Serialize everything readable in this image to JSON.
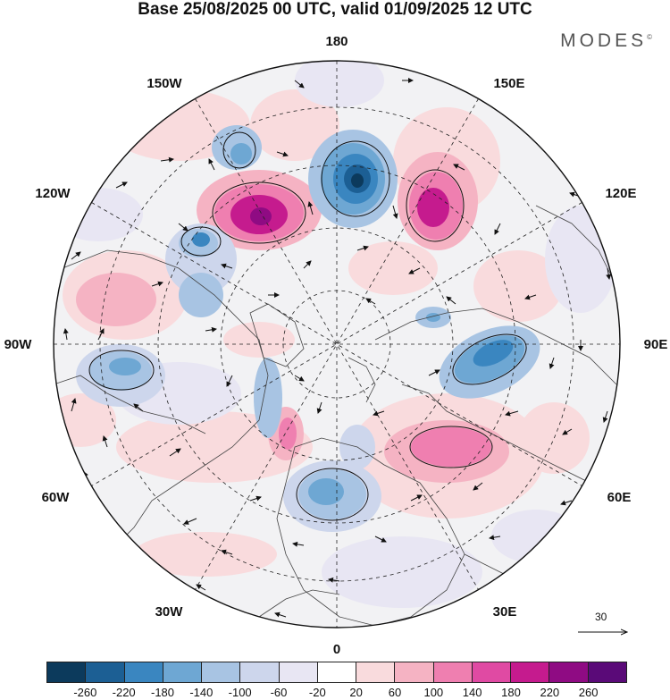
{
  "title": "Base 25/08/2025 00 UTC, valid 01/09/2025 12 UTC",
  "brand": "MODES",
  "brand_mark": "©",
  "longitude_labels": {
    "lon_180": "180",
    "lon_150e": "150E",
    "lon_120e": "120E",
    "lon_90e": "90E",
    "lon_60e": "60E",
    "lon_30e": "30E",
    "lon_0": "0",
    "lon_30w": "30W",
    "lon_60w": "60W",
    "lon_90w": "90W",
    "lon_120w": "120W",
    "lon_150w": "150W"
  },
  "vector_scale_label": "30",
  "colorbar": {
    "colors": [
      "#0c3a5c",
      "#1c5f94",
      "#3a86c0",
      "#6ea7d3",
      "#a8c4e3",
      "#cdd6ec",
      "#e8e6f3",
      "#ffffff",
      "#f9dbdd",
      "#f5b3c3",
      "#ef7fb0",
      "#e04aa3",
      "#c51b8e",
      "#8f0b83",
      "#5a0a78"
    ],
    "ticks": [
      "-260",
      "-220",
      "-180",
      "-140",
      "-100",
      "-60",
      "-20",
      "20",
      "60",
      "100",
      "140",
      "180",
      "220",
      "260"
    ]
  },
  "colors": {
    "ocean": "#f4f4f6",
    "land_edge": "#444444",
    "grid": "#222222"
  }
}
